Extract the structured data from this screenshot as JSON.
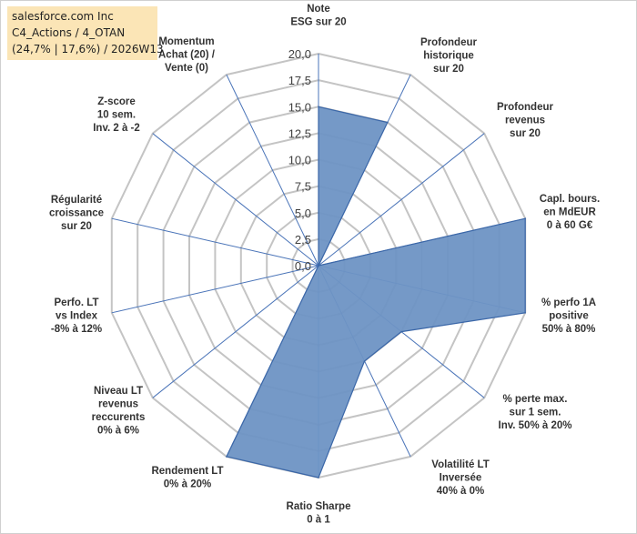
{
  "header": {
    "line1": "salesforce.com Inc",
    "line2": "C4_Actions / 4_OTAN",
    "line3": "(24,7% | 17,6%) / 2026W13"
  },
  "colors": {
    "fill": "#6e93c4",
    "stroke": "#3b67a8",
    "grid": "#c4c4c4",
    "spoke": "#4a74b8",
    "header_bg": "#fbe5b6"
  },
  "chart_data": {
    "type": "radar",
    "range": [
      0,
      20
    ],
    "ticks": [
      {
        "value": 0,
        "label": "0,0"
      },
      {
        "value": 2.5,
        "label": "2,5"
      },
      {
        "value": 5,
        "label": "5,0"
      },
      {
        "value": 7.5,
        "label": "7,5"
      },
      {
        "value": 10,
        "label": "10,0"
      },
      {
        "value": 12.5,
        "label": "12,5"
      },
      {
        "value": 15,
        "label": "15,0"
      },
      {
        "value": 17.5,
        "label": "17,5"
      },
      {
        "value": 20,
        "label": "20,0"
      }
    ],
    "axes": [
      {
        "label": [
          "Note",
          "ESG sur 20"
        ],
        "value": 15
      },
      {
        "label": [
          "Profondeur",
          "historique",
          "sur 20"
        ],
        "value": 15
      },
      {
        "label": [
          "Profondeur",
          "revenus",
          "sur 20"
        ],
        "value": 0
      },
      {
        "label": [
          "Capl. bours.",
          "en MdEUR",
          "0 à 60 G€"
        ],
        "value": 20
      },
      {
        "label": [
          "% perfo 1A",
          "positive",
          "50% à 80%"
        ],
        "value": 20
      },
      {
        "label": [
          "% perte max.",
          "sur 1 sem.",
          "Inv. 50% à 20%"
        ],
        "value": 10
      },
      {
        "label": [
          "Volatilité LT",
          "Inversée",
          "40% à 0%"
        ],
        "value": 10
      },
      {
        "label": [
          "Ratio Sharpe",
          "0 à 1"
        ],
        "value": 20
      },
      {
        "label": [
          "Rendement LT",
          "0% à 20%"
        ],
        "value": 20
      },
      {
        "label": [
          "Niveau LT",
          "revenus",
          "reccurents",
          "0% à 6%"
        ],
        "value": 0
      },
      {
        "label": [
          "Perfo. LT",
          "vs Index",
          "-8% à 12%"
        ],
        "value": 0
      },
      {
        "label": [
          "Régularité",
          "croissance",
          "sur 20"
        ],
        "value": 0
      },
      {
        "label": [
          "Z-score",
          "10 sem.",
          "Inv. 2 à -2"
        ],
        "value": 0
      },
      {
        "label": [
          "Momentum",
          "Achat (20) /",
          "Vente (0)"
        ],
        "value": 0
      }
    ]
  }
}
